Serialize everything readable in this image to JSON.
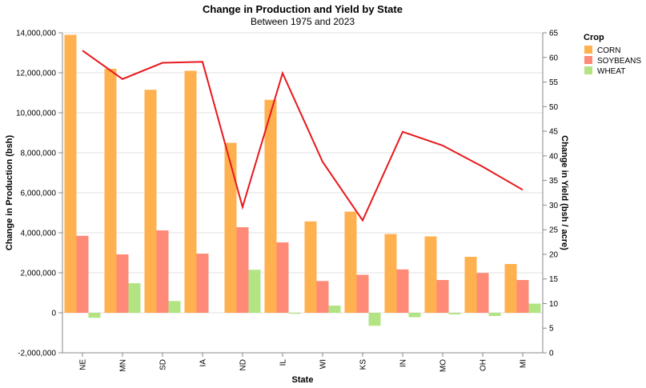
{
  "chart_data": {
    "type": "bar",
    "title": "Change in Production and Yield by State",
    "subtitle": "Between 1975 and 2023",
    "xlabel": "State",
    "ylabel": "Change in Production (bsh)",
    "y2label": "Change in Yield (bsh / acre)",
    "categories": [
      "NE",
      "MN",
      "SD",
      "IA",
      "ND",
      "IL",
      "WI",
      "KS",
      "IN",
      "MO",
      "OH",
      "MI"
    ],
    "ylim": [
      -2000000,
      14000000
    ],
    "y2lim": [
      0,
      65
    ],
    "yticks": [
      "-2,000,000",
      "0",
      "2,000,000",
      "4,000,000",
      "6,000,000",
      "8,000,000",
      "10,000,000",
      "12,000,000",
      "14,000,000"
    ],
    "y2ticks": [
      "0",
      "5",
      "10",
      "15",
      "20",
      "25",
      "30",
      "35",
      "40",
      "45",
      "50",
      "55",
      "60",
      "65"
    ],
    "grid": true,
    "legend_title": "Crop",
    "legend_position": "right",
    "series": [
      {
        "name": "CORN",
        "color": "#ffb04f",
        "values": [
          13900000,
          12200000,
          11150000,
          12100000,
          8500000,
          10650000,
          4570000,
          5060000,
          3940000,
          3820000,
          2800000,
          2440000
        ]
      },
      {
        "name": "SOYBEANS",
        "color": "#ff8a78",
        "values": [
          3850000,
          2920000,
          4120000,
          2960000,
          4280000,
          3520000,
          1590000,
          1900000,
          2170000,
          1640000,
          1990000,
          1640000
        ]
      },
      {
        "name": "WHEAT",
        "color": "#b3e484",
        "values": [
          -250000,
          1480000,
          590000,
          0,
          2150000,
          -50000,
          360000,
          -650000,
          -220000,
          -80000,
          -160000,
          460000
        ]
      }
    ],
    "line_series": {
      "name": "Yield",
      "color": "#e8181c",
      "axis": "right",
      "values": [
        61.4,
        55.6,
        58.9,
        59.1,
        29.6,
        56.8,
        38.8,
        26.9,
        44.9,
        42.1,
        37.8,
        33.1
      ]
    }
  }
}
